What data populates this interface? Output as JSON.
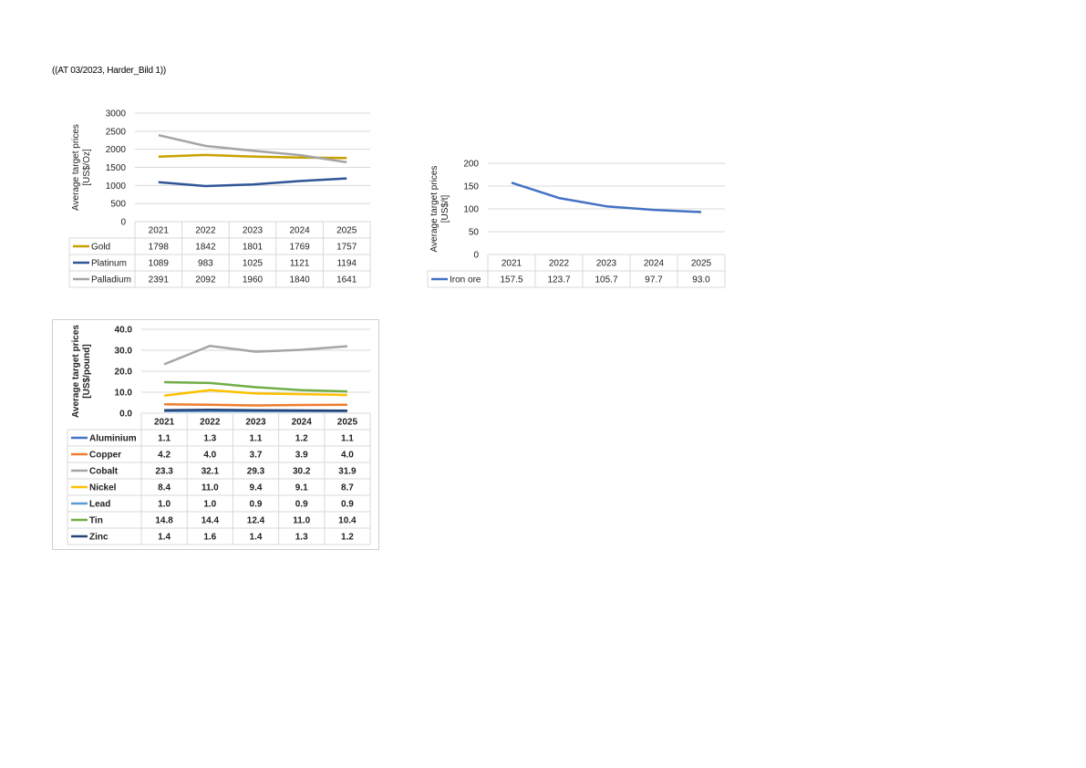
{
  "caption": "((AT 03/2023, Harder_Bild 1))",
  "chart_data": [
    {
      "type": "line",
      "ylabel": [
        "Average target prices",
        "[US$/Oz]"
      ],
      "ylim": [
        0,
        3000
      ],
      "yticks": [
        "0",
        "500",
        "1000",
        "1500",
        "2000",
        "2500",
        "3000"
      ],
      "ytick_values": [
        0,
        500,
        1000,
        1500,
        2000,
        2500,
        3000
      ],
      "categories": [
        "2021",
        "2022",
        "2023",
        "2024",
        "2025"
      ],
      "legend": "data-table",
      "grid": true,
      "series": [
        {
          "name": "Gold",
          "color": "#C9A000",
          "values": [
            1798,
            1842,
            1801,
            1769,
            1757
          ],
          "labels": [
            "1798",
            "1842",
            "1801",
            "1769",
            "1757"
          ]
        },
        {
          "name": "Platinum",
          "color": "#2F5597",
          "values": [
            1089,
            983,
            1025,
            1121,
            1194
          ],
          "labels": [
            "1089",
            "983",
            "1025",
            "1121",
            "1194"
          ]
        },
        {
          "name": "Palladium",
          "color": "#A5A5A5",
          "values": [
            2391,
            2092,
            1960,
            1840,
            1641
          ],
          "labels": [
            "2391",
            "2092",
            "1960",
            "1840",
            "1641"
          ]
        }
      ]
    },
    {
      "type": "line",
      "ylabel": [
        "Average target prices",
        "[US$/t]"
      ],
      "ylim": [
        0,
        200
      ],
      "yticks": [
        "0",
        "50",
        "100",
        "150",
        "200"
      ],
      "ytick_values": [
        0,
        50,
        100,
        150,
        200
      ],
      "categories": [
        "2021",
        "2022",
        "2023",
        "2024",
        "2025"
      ],
      "legend": "data-table",
      "grid": true,
      "series": [
        {
          "name": "Iron ore",
          "color": "#4472C4",
          "values": [
            157.5,
            123.7,
            105.7,
            97.7,
            93.0
          ],
          "labels": [
            "157.5",
            "123.7",
            "105.7",
            "97.7",
            "93.0"
          ]
        }
      ]
    },
    {
      "type": "line",
      "ylabel": [
        "Average target prices",
        "[US$/pound]"
      ],
      "ylim": [
        0,
        40
      ],
      "yticks": [
        "0.0",
        "10.0",
        "20.0",
        "30.0",
        "40.0"
      ],
      "ytick_values": [
        0,
        10,
        20,
        30,
        40
      ],
      "categories": [
        "2021",
        "2022",
        "2023",
        "2024",
        "2025"
      ],
      "legend": "data-table",
      "grid": true,
      "series": [
        {
          "name": "Aluminium",
          "color": "#4472C4",
          "values": [
            1.1,
            1.3,
            1.1,
            1.2,
            1.1
          ],
          "labels": [
            "1.1",
            "1.3",
            "1.1",
            "1.2",
            "1.1"
          ]
        },
        {
          "name": "Copper",
          "color": "#ED7D31",
          "values": [
            4.2,
            4.0,
            3.7,
            3.9,
            4.0
          ],
          "labels": [
            "4.2",
            "4.0",
            "3.7",
            "3.9",
            "4.0"
          ]
        },
        {
          "name": "Cobalt",
          "color": "#A5A5A5",
          "values": [
            23.3,
            32.1,
            29.3,
            30.2,
            31.9
          ],
          "labels": [
            "23.3",
            "32.1",
            "29.3",
            "30.2",
            "31.9"
          ]
        },
        {
          "name": "Nickel",
          "color": "#FFC000",
          "values": [
            8.4,
            11.0,
            9.4,
            9.1,
            8.7
          ],
          "labels": [
            "8.4",
            "11.0",
            "9.4",
            "9.1",
            "8.7"
          ]
        },
        {
          "name": "Lead",
          "color": "#5B9BD5",
          "values": [
            1.0,
            1.0,
            0.9,
            0.9,
            0.9
          ],
          "labels": [
            "1.0",
            "1.0",
            "0.9",
            "0.9",
            "0.9"
          ]
        },
        {
          "name": "Tin",
          "color": "#70AD47",
          "values": [
            14.8,
            14.4,
            12.4,
            11.0,
            10.4
          ],
          "labels": [
            "14.8",
            "14.4",
            "12.4",
            "11.0",
            "10.4"
          ]
        },
        {
          "name": "Zinc",
          "color": "#264478",
          "values": [
            1.4,
            1.6,
            1.4,
            1.3,
            1.2
          ],
          "labels": [
            "1.4",
            "1.6",
            "1.4",
            "1.3",
            "1.2"
          ]
        }
      ]
    }
  ]
}
